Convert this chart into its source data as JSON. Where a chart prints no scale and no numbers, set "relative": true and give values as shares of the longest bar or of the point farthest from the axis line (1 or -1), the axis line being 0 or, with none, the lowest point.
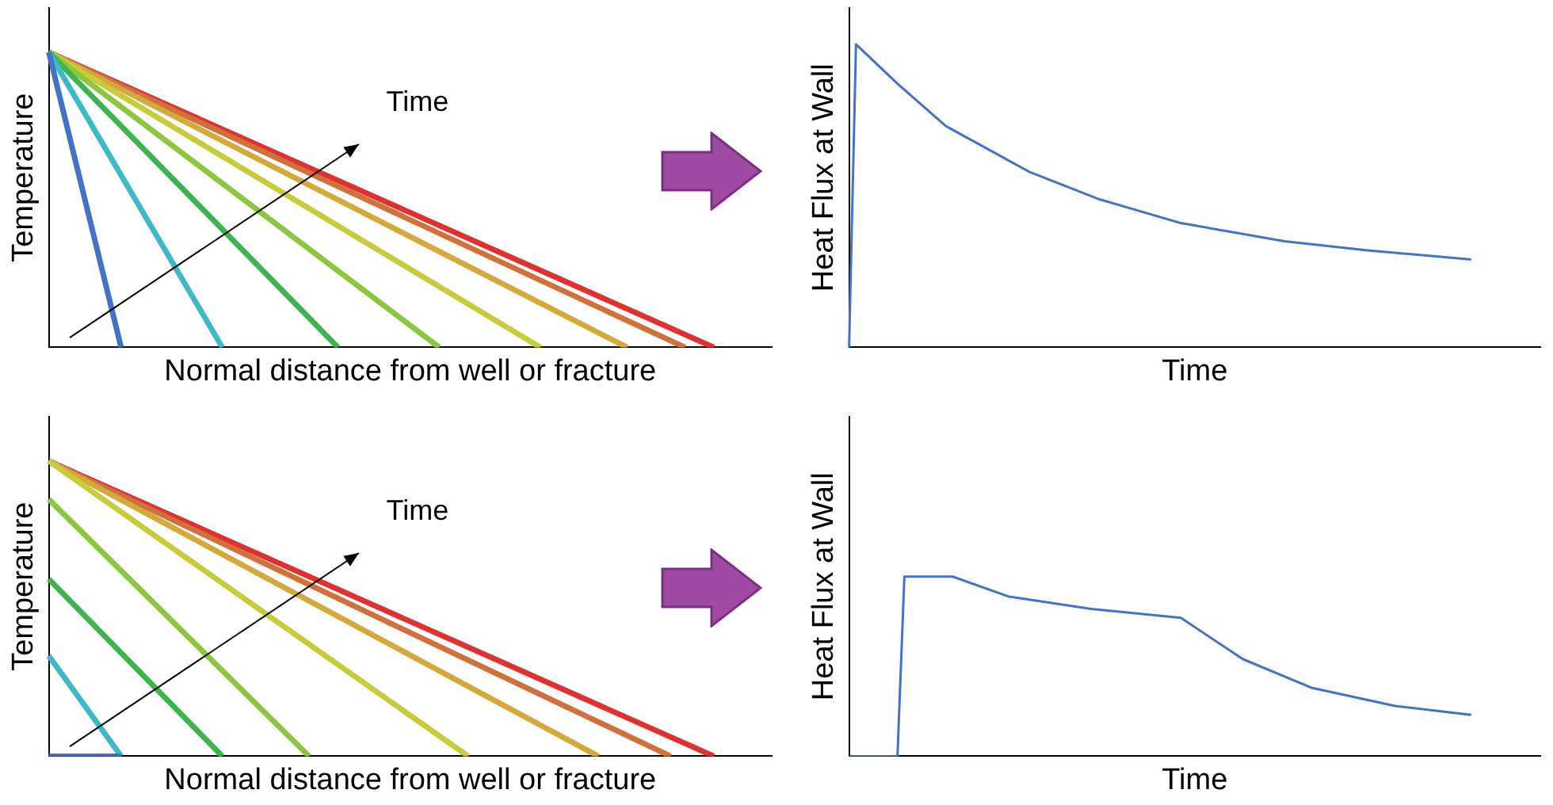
{
  "chart_data": [
    {
      "type": "line",
      "relative": true,
      "xlabel": "Normal distance from well or fracture",
      "ylabel": "Temperature",
      "tick_labels": false,
      "grid": false,
      "legend": false,
      "marker": "none",
      "annotations": [
        "Time"
      ],
      "categories": [
        null,
        null,
        null,
        null,
        null,
        null,
        null,
        null,
        null,
        null,
        null,
        null,
        null,
        null,
        null,
        null,
        null,
        null,
        null,
        null,
        null,
        null,
        null,
        null,
        null,
        null,
        null,
        null,
        null,
        null,
        null,
        null,
        null,
        null,
        null,
        null,
        null,
        null,
        null,
        null,
        null,
        null,
        null,
        null,
        null,
        null,
        null,
        null,
        null,
        null,
        null
      ],
      "series": [
        {
          "color": "#4472c4",
          "values": [
            1,
            null,
            null,
            null,
            null,
            0,
            null,
            null,
            null,
            null,
            null,
            null,
            null,
            null,
            null,
            null,
            null,
            null,
            null,
            null,
            null,
            null,
            null,
            null,
            null,
            null,
            null,
            null,
            null,
            null,
            null,
            null,
            null,
            null,
            null,
            null,
            null,
            null,
            null,
            null,
            null,
            null,
            null,
            null,
            null,
            null,
            null,
            null,
            null,
            null,
            null
          ]
        },
        {
          "color": "#3fb8c8",
          "values": [
            1,
            null,
            null,
            null,
            null,
            null,
            null,
            null,
            null,
            null,
            null,
            null,
            0,
            null,
            null,
            null,
            null,
            null,
            null,
            null,
            null,
            null,
            null,
            null,
            null,
            null,
            null,
            null,
            null,
            null,
            null,
            null,
            null,
            null,
            null,
            null,
            null,
            null,
            null,
            null,
            null,
            null,
            null,
            null,
            null,
            null,
            null,
            null,
            null,
            null,
            null
          ]
        },
        {
          "color": "#3cb550",
          "values": [
            1,
            null,
            null,
            null,
            null,
            null,
            null,
            null,
            null,
            null,
            null,
            null,
            null,
            null,
            null,
            null,
            null,
            null,
            null,
            null,
            0,
            null,
            null,
            null,
            null,
            null,
            null,
            null,
            null,
            null,
            null,
            null,
            null,
            null,
            null,
            null,
            null,
            null,
            null,
            null,
            null,
            null,
            null,
            null,
            null,
            null,
            null,
            null,
            null,
            null,
            null
          ]
        },
        {
          "color": "#8cc63f",
          "values": [
            1,
            null,
            null,
            null,
            null,
            null,
            null,
            null,
            null,
            null,
            null,
            null,
            null,
            null,
            null,
            null,
            null,
            null,
            null,
            null,
            null,
            null,
            null,
            null,
            null,
            null,
            null,
            0,
            null,
            null,
            null,
            null,
            null,
            null,
            null,
            null,
            null,
            null,
            null,
            null,
            null,
            null,
            null,
            null,
            null,
            null,
            null,
            null,
            null,
            null,
            null
          ]
        },
        {
          "color": "#c8cc3a",
          "values": [
            1,
            null,
            null,
            null,
            null,
            null,
            null,
            null,
            null,
            null,
            null,
            null,
            null,
            null,
            null,
            null,
            null,
            null,
            null,
            null,
            null,
            null,
            null,
            null,
            null,
            null,
            null,
            null,
            null,
            null,
            null,
            null,
            null,
            null,
            0,
            null,
            null,
            null,
            null,
            null,
            null,
            null,
            null,
            null,
            null,
            null,
            null,
            null,
            null,
            null,
            null
          ]
        },
        {
          "color": "#d4a83a",
          "values": [
            1,
            null,
            null,
            null,
            null,
            null,
            null,
            null,
            null,
            null,
            null,
            null,
            null,
            null,
            null,
            null,
            null,
            null,
            null,
            null,
            null,
            null,
            null,
            null,
            null,
            null,
            null,
            null,
            null,
            null,
            null,
            null,
            null,
            null,
            null,
            null,
            null,
            null,
            null,
            null,
            0,
            null,
            null,
            null,
            null,
            null,
            null,
            null,
            null,
            null,
            null
          ]
        },
        {
          "color": "#d0703a",
          "values": [
            1,
            null,
            null,
            null,
            null,
            null,
            null,
            null,
            null,
            null,
            null,
            null,
            null,
            null,
            null,
            null,
            null,
            null,
            null,
            null,
            null,
            null,
            null,
            null,
            null,
            null,
            null,
            null,
            null,
            null,
            null,
            null,
            null,
            null,
            null,
            null,
            null,
            null,
            null,
            null,
            null,
            null,
            null,
            null,
            0,
            null,
            null,
            null,
            null,
            null,
            null
          ]
        },
        {
          "color": "#e03030",
          "values": [
            1,
            null,
            null,
            null,
            null,
            null,
            null,
            null,
            null,
            null,
            null,
            null,
            null,
            null,
            null,
            null,
            null,
            null,
            null,
            null,
            null,
            null,
            null,
            null,
            null,
            null,
            null,
            null,
            null,
            null,
            null,
            null,
            null,
            null,
            null,
            null,
            null,
            null,
            null,
            null,
            null,
            null,
            null,
            null,
            null,
            null,
            0,
            null,
            null,
            null,
            null
          ]
        }
      ]
    },
    {
      "type": "line",
      "relative": true,
      "xlabel": "Time",
      "ylabel": "Heat Flux at Wall",
      "tick_labels": false,
      "grid": false,
      "legend": false,
      "marker": "none",
      "categories": [
        null,
        null,
        null,
        null,
        null,
        null,
        null,
        null,
        null,
        null,
        null,
        null,
        null,
        null,
        null,
        null,
        null,
        null,
        null,
        null,
        null,
        null,
        null,
        null,
        null,
        null,
        null,
        null,
        null,
        null,
        null,
        null,
        null,
        null,
        null,
        null,
        null,
        null,
        null,
        null,
        null,
        null,
        null,
        null,
        null,
        null,
        null,
        null,
        null,
        null,
        null,
        null,
        null,
        null,
        null,
        null,
        null,
        null,
        null,
        null,
        null,
        null,
        null,
        null,
        null,
        null,
        null,
        null,
        null,
        null,
        null,
        null,
        null,
        null,
        null,
        null,
        null,
        null,
        null,
        null,
        null,
        null,
        null,
        null,
        null,
        null,
        null,
        null,
        null,
        null,
        null,
        null,
        null,
        null,
        null,
        null,
        null,
        null,
        null,
        null,
        null
      ],
      "series": [
        {
          "color": "#4472c4",
          "values": [
            0,
            1,
            null,
            null,
            null,
            null,
            null,
            0.87,
            null,
            null,
            null,
            null,
            null,
            null,
            0.73,
            null,
            null,
            null,
            null,
            null,
            null,
            null,
            null,
            null,
            null,
            null,
            0.58,
            null,
            null,
            null,
            null,
            null,
            null,
            null,
            null,
            null,
            0.49,
            null,
            null,
            null,
            null,
            null,
            null,
            null,
            null,
            null,
            null,
            null,
            0.41,
            null,
            null,
            null,
            null,
            null,
            null,
            null,
            null,
            null,
            null,
            null,
            null,
            null,
            null,
            0.35,
            null,
            null,
            null,
            null,
            null,
            null,
            null,
            null,
            null,
            null,
            null,
            0.32,
            null,
            null,
            null,
            null,
            null,
            null,
            null,
            null,
            null,
            null,
            null,
            null,
            null,
            null,
            0.29,
            null,
            null,
            null,
            null,
            null,
            null,
            null,
            null,
            null,
            null
          ]
        }
      ]
    },
    {
      "type": "line",
      "relative": true,
      "xlabel": "Normal distance from well or fracture",
      "ylabel": "Temperature",
      "tick_labels": false,
      "grid": false,
      "legend": false,
      "marker": "none",
      "annotations": [
        "Time"
      ],
      "categories": [
        null,
        null,
        null,
        null,
        null,
        null,
        null,
        null,
        null,
        null,
        null,
        null,
        null,
        null,
        null,
        null,
        null,
        null,
        null,
        null,
        null,
        null,
        null,
        null,
        null,
        null,
        null,
        null,
        null,
        null,
        null,
        null,
        null,
        null,
        null,
        null,
        null,
        null,
        null,
        null,
        null,
        null,
        null,
        null,
        null,
        null,
        null,
        null,
        null,
        null,
        null
      ],
      "series": [
        {
          "color": "#4472c4",
          "values": [
            0,
            null,
            null,
            null,
            null,
            0,
            null,
            null,
            null,
            null,
            null,
            null,
            null,
            null,
            null,
            null,
            null,
            null,
            null,
            null,
            null,
            null,
            null,
            null,
            null,
            null,
            null,
            null,
            null,
            null,
            null,
            null,
            null,
            null,
            null,
            null,
            null,
            null,
            null,
            null,
            null,
            null,
            null,
            null,
            null,
            null,
            null,
            null,
            null,
            null,
            null
          ]
        },
        {
          "color": "#3fb8c8",
          "values": [
            0.34,
            null,
            null,
            null,
            null,
            0,
            null,
            null,
            null,
            null,
            null,
            null,
            null,
            null,
            null,
            null,
            null,
            null,
            null,
            null,
            null,
            null,
            null,
            null,
            null,
            null,
            null,
            null,
            null,
            null,
            null,
            null,
            null,
            null,
            null,
            null,
            null,
            null,
            null,
            null,
            null,
            null,
            null,
            null,
            null,
            null,
            null,
            null,
            null,
            null,
            null
          ]
        },
        {
          "color": "#3cb550",
          "values": [
            0.6,
            null,
            null,
            null,
            null,
            null,
            null,
            null,
            null,
            null,
            null,
            null,
            0,
            null,
            null,
            null,
            null,
            null,
            null,
            null,
            null,
            null,
            null,
            null,
            null,
            null,
            null,
            null,
            null,
            null,
            null,
            null,
            null,
            null,
            null,
            null,
            null,
            null,
            null,
            null,
            null,
            null,
            null,
            null,
            null,
            null,
            null,
            null,
            null,
            null,
            null
          ]
        },
        {
          "color": "#8cc63f",
          "values": [
            0.87,
            null,
            null,
            null,
            null,
            null,
            null,
            null,
            null,
            null,
            null,
            null,
            null,
            null,
            null,
            null,
            null,
            null,
            0,
            null,
            null,
            null,
            null,
            null,
            null,
            null,
            null,
            null,
            null,
            null,
            null,
            null,
            null,
            null,
            null,
            null,
            null,
            null,
            null,
            null,
            null,
            null,
            null,
            null,
            null,
            null,
            null,
            null,
            null,
            null,
            null
          ]
        },
        {
          "color": "#c8cc3a",
          "values": [
            1,
            null,
            null,
            null,
            null,
            null,
            null,
            null,
            null,
            null,
            null,
            null,
            null,
            null,
            null,
            null,
            null,
            null,
            null,
            null,
            null,
            null,
            null,
            null,
            null,
            null,
            null,
            null,
            null,
            0,
            null,
            null,
            null,
            null,
            null,
            null,
            null,
            null,
            null,
            null,
            null,
            null,
            null,
            null,
            null,
            null,
            null,
            null,
            null,
            null,
            null
          ]
        },
        {
          "color": "#d4a83a",
          "values": [
            1,
            null,
            null,
            null,
            null,
            null,
            null,
            null,
            null,
            null,
            null,
            null,
            null,
            null,
            null,
            null,
            null,
            null,
            null,
            null,
            null,
            null,
            null,
            null,
            null,
            null,
            null,
            null,
            null,
            null,
            null,
            null,
            null,
            null,
            null,
            null,
            null,
            null,
            0,
            null,
            null,
            null,
            null,
            null,
            null,
            null,
            null,
            null,
            null,
            null,
            null
          ]
        },
        {
          "color": "#d0703a",
          "values": [
            1,
            null,
            null,
            null,
            null,
            null,
            null,
            null,
            null,
            null,
            null,
            null,
            null,
            null,
            null,
            null,
            null,
            null,
            null,
            null,
            null,
            null,
            null,
            null,
            null,
            null,
            null,
            null,
            null,
            null,
            null,
            null,
            null,
            null,
            null,
            null,
            null,
            null,
            null,
            null,
            null,
            null,
            null,
            0,
            null,
            null,
            null,
            null,
            null,
            null,
            null
          ]
        },
        {
          "color": "#e03030",
          "values": [
            1,
            null,
            null,
            null,
            null,
            null,
            null,
            null,
            null,
            null,
            null,
            null,
            null,
            null,
            null,
            null,
            null,
            null,
            null,
            null,
            null,
            null,
            null,
            null,
            null,
            null,
            null,
            null,
            null,
            null,
            null,
            null,
            null,
            null,
            null,
            null,
            null,
            null,
            null,
            null,
            null,
            null,
            null,
            null,
            null,
            null,
            0,
            null,
            null,
            null,
            null
          ]
        }
      ]
    },
    {
      "type": "line",
      "relative": true,
      "xlabel": "Time",
      "ylabel": "Heat Flux at Wall",
      "tick_labels": false,
      "grid": false,
      "legend": false,
      "marker": "none",
      "categories": [
        null,
        null,
        null,
        null,
        null,
        null,
        null,
        null,
        null,
        null,
        null,
        null,
        null,
        null,
        null,
        null,
        null,
        null,
        null,
        null,
        null,
        null,
        null,
        null,
        null,
        null,
        null,
        null,
        null,
        null,
        null,
        null,
        null,
        null,
        null,
        null,
        null,
        null,
        null,
        null,
        null,
        null,
        null,
        null,
        null,
        null,
        null,
        null,
        null,
        null,
        null,
        null,
        null,
        null,
        null,
        null,
        null,
        null,
        null,
        null,
        null,
        null,
        null,
        null,
        null,
        null,
        null,
        null,
        null,
        null,
        null,
        null,
        null,
        null,
        null,
        null,
        null,
        null,
        null,
        null,
        null,
        null,
        null,
        null,
        null,
        null,
        null,
        null,
        null,
        null,
        null,
        null,
        null,
        null,
        null,
        null,
        null,
        null,
        null,
        null,
        null
      ],
      "series": [
        {
          "color": "#4472c4",
          "values": [
            0,
            null,
            null,
            null,
            null,
            null,
            null,
            0,
            1,
            null,
            null,
            null,
            null,
            null,
            null,
            1,
            null,
            null,
            null,
            null,
            null,
            null,
            null,
            0.89,
            null,
            null,
            null,
            null,
            null,
            null,
            null,
            null,
            null,
            null,
            null,
            0.82,
            null,
            null,
            null,
            null,
            null,
            null,
            null,
            null,
            null,
            null,
            null,
            null,
            0.77,
            null,
            null,
            null,
            null,
            null,
            null,
            null,
            null,
            0.54,
            null,
            null,
            null,
            null,
            null,
            null,
            null,
            null,
            null,
            0.38,
            null,
            null,
            null,
            null,
            null,
            null,
            null,
            null,
            null,
            null,
            null,
            0.28,
            null,
            null,
            null,
            null,
            null,
            null,
            null,
            null,
            null,
            null,
            0.23,
            null,
            null,
            null,
            null,
            null,
            null,
            null,
            null,
            null,
            null
          ]
        }
      ]
    }
  ]
}
